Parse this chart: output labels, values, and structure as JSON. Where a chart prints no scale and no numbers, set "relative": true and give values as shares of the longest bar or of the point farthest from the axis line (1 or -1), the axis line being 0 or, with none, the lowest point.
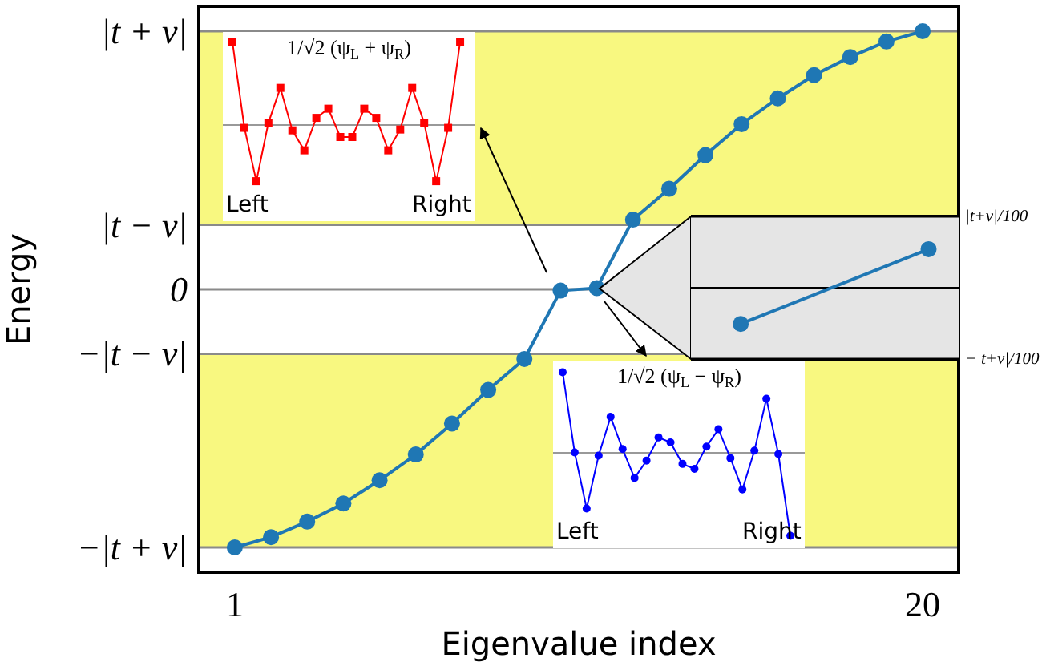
{
  "chart_data": [
    {
      "type": "line",
      "xlabel": "Eigenvalue index",
      "ylabel": "Energy",
      "x": [
        1,
        2,
        3,
        4,
        5,
        6,
        7,
        8,
        9,
        10,
        11,
        12,
        13,
        14,
        15,
        16,
        17,
        18,
        19,
        20
      ],
      "series": [
        {
          "color": "#1f77b4",
          "values": [
            -1.0,
            -0.96,
            -0.9,
            -0.83,
            -0.74,
            -0.64,
            -0.52,
            -0.39,
            -0.27,
            -0.005,
            0.005,
            0.27,
            0.39,
            0.52,
            0.64,
            0.74,
            0.83,
            0.9,
            0.96,
            1.0
          ]
        }
      ],
      "xlim": [
        0.05,
        20.95
      ],
      "xticks": [
        1,
        20
      ],
      "relative": true,
      "ref_lines": [
        {
          "axis": "y",
          "value": 1,
          "label": "|t + v|",
          "color": "#8a8a8a"
        },
        {
          "axis": "y",
          "value": 0.25,
          "label": "|t − v|",
          "color": "#8a8a8a"
        },
        {
          "axis": "y",
          "value": 0,
          "label": "0",
          "color": "#8a8a8a"
        },
        {
          "axis": "y",
          "value": -0.25,
          "label": "−|t − v|",
          "color": "#8a8a8a"
        },
        {
          "axis": "y",
          "value": -1,
          "label": "−|t + v|",
          "color": "#8a8a8a"
        }
      ],
      "marker": "circle",
      "bands": [
        {
          "axis": "y",
          "from": 0.25,
          "to": 1,
          "color": "#f8f880"
        },
        {
          "axis": "y",
          "from": -1,
          "to": -0.25,
          "color": "#f8f880"
        }
      ]
    },
    {
      "type": "line",
      "categories": [
        null,
        null
      ],
      "relative": true,
      "series": [
        {
          "color": "#1f77b4",
          "values": [
            -0.94,
            1
          ]
        }
      ],
      "ref_lines": [
        {
          "axis": "y",
          "value": 1.85,
          "label": "|t+v|/100",
          "color": "#000000"
        },
        {
          "axis": "y",
          "value": -1.85,
          "label": "−|t+v|/100",
          "color": "#000000"
        }
      ],
      "marker": "circle"
    },
    {
      "type": "line",
      "title": "1/√2 (ψ$_{L}$ + ψ$_{R}$)",
      "relative": true,
      "categories": [
        null,
        null,
        null,
        null,
        null,
        null,
        null,
        null,
        null,
        null,
        null,
        null,
        null,
        null,
        null,
        null,
        null,
        null,
        null,
        null
      ],
      "series": [
        {
          "color": "#ff0000",
          "values": [
            1,
            -0.03,
            -0.67,
            0.03,
            0.45,
            -0.06,
            -0.3,
            0.09,
            0.2,
            -0.14,
            -0.14,
            0.2,
            0.09,
            -0.3,
            -0.05,
            0.45,
            0.03,
            -0.67,
            -0.03,
            1
          ]
        }
      ],
      "marker": "square",
      "annotations": [
        "Left",
        "Right"
      ]
    },
    {
      "type": "line",
      "title": "1/√2 (ψ$_{L}$ − ψ$_{R}$)",
      "relative": true,
      "categories": [
        null,
        null,
        null,
        null,
        null,
        null,
        null,
        null,
        null,
        null,
        null,
        null,
        null,
        null,
        null,
        null,
        null,
        null,
        null,
        null
      ],
      "series": [
        {
          "color": "#0000ff",
          "values": [
            0.98,
            0.01,
            -0.67,
            -0.03,
            0.44,
            0.05,
            -0.3,
            -0.09,
            0.19,
            0.13,
            -0.13,
            -0.19,
            0.08,
            0.29,
            -0.06,
            -0.44,
            0.03,
            0.66,
            -0.01,
            -1
          ]
        }
      ],
      "marker": "circle",
      "annotations": [
        "Left",
        "Right"
      ]
    }
  ]
}
